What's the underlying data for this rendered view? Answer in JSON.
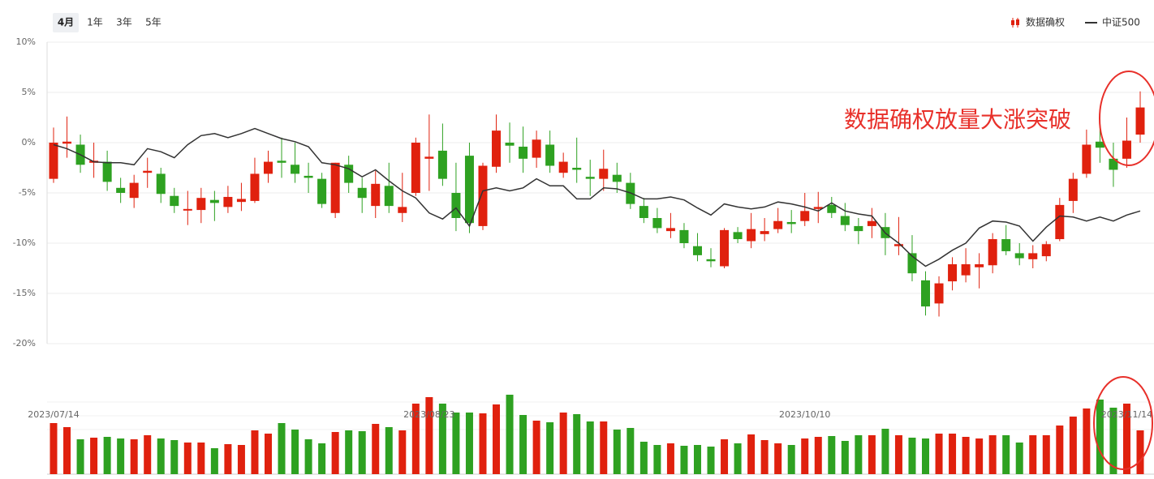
{
  "tabs": [
    "4月",
    "1年",
    "3年",
    "5年"
  ],
  "chart_data": {
    "type": "candlestick",
    "annotation": "数据确权放量大涨突破",
    "categories": [
      "2023/07/14",
      null,
      null,
      null,
      null,
      null,
      null,
      null,
      null,
      null,
      null,
      null,
      null,
      null,
      null,
      null,
      null,
      null,
      null,
      null,
      null,
      null,
      null,
      null,
      null,
      null,
      null,
      null,
      "2023/08/23",
      null,
      null,
      null,
      null,
      null,
      null,
      null,
      null,
      null,
      null,
      null,
      null,
      null,
      null,
      null,
      null,
      null,
      null,
      null,
      null,
      null,
      null,
      null,
      null,
      null,
      null,
      null,
      "2023/10/10",
      null,
      null,
      null,
      null,
      null,
      null,
      null,
      null,
      null,
      null,
      null,
      null,
      null,
      null,
      null,
      null,
      null,
      null,
      null,
      null,
      null,
      null,
      null,
      "2023/11/14",
      null
    ],
    "ylim": [
      -20,
      10
    ],
    "yticks": [
      {
        "value": 10,
        "label": "10%"
      },
      {
        "value": 5,
        "label": "5%"
      },
      {
        "value": 0,
        "label": "0%"
      },
      {
        "value": -5,
        "label": "-5%"
      },
      {
        "value": -10,
        "label": "-10%"
      },
      {
        "value": -15,
        "label": "-15%"
      },
      {
        "value": -20,
        "label": "-20%"
      }
    ],
    "volume_ylim": [
      0,
      100
    ],
    "grid": true,
    "series": [
      {
        "name": "数据确权",
        "type": "candlestick",
        "up_color": "#e0210e",
        "down_color": "#2ea121",
        "open": [
          -3.6,
          -0.1,
          -0.2,
          -2,
          -1.9,
          -4.5,
          -5.5,
          -3,
          -3.1,
          -5.3,
          -6.7,
          -6.7,
          -5.7,
          -6.4,
          -5.9,
          -5.8,
          -3.1,
          -1.8,
          -2.2,
          -3.3,
          -3.6,
          -7,
          -2.2,
          -4.5,
          -6.3,
          -4.3,
          -7,
          -5,
          -1.6,
          -0.8,
          -5,
          -1.3,
          -8.3,
          -2.4,
          0,
          -0.4,
          -1.5,
          -0.2,
          -3,
          -2.5,
          -3.4,
          -3.6,
          -3.2,
          -4,
          -6.3,
          -7.5,
          -8.8,
          -8.7,
          -10.3,
          -11.6,
          -12.3,
          -8.9,
          -9.8,
          -9.1,
          -8.6,
          -7.9,
          -7.8,
          -6.6,
          -6.2,
          -7.3,
          -8.3,
          -8.3,
          -8.4,
          -10.3,
          -11,
          -13.7,
          -16,
          -13.8,
          -13.2,
          -12.4,
          -12.2,
          -9.6,
          -11,
          -11.6,
          -11.3,
          -9.6,
          -5.8,
          -3.1,
          0.1,
          -1.6,
          -1.6,
          0.8
        ],
        "close": [
          0,
          0.1,
          -2.2,
          -1.8,
          -3.9,
          -5,
          -4,
          -2.8,
          -5.1,
          -6.3,
          -6.6,
          -5.5,
          -6,
          -5.4,
          -5.6,
          -3.1,
          -1.9,
          -2,
          -3.1,
          -3.5,
          -6.1,
          -2,
          -4,
          -5.5,
          -4.1,
          -6.3,
          -6.4,
          0,
          -1.4,
          -3.6,
          -7.5,
          -8,
          -2.3,
          1.2,
          -0.3,
          -1.6,
          0.3,
          -2.3,
          -1.9,
          -2.7,
          -3.6,
          -2.6,
          -3.9,
          -6.1,
          -7.5,
          -8.5,
          -8.5,
          -10,
          -11.2,
          -11.8,
          -8.7,
          -9.6,
          -8.6,
          -8.8,
          -7.8,
          -8.1,
          -6.8,
          -6.4,
          -7,
          -8.2,
          -8.8,
          -7.8,
          -9.5,
          -10.1,
          -13,
          -16.3,
          -14,
          -12.1,
          -12.1,
          -12.1,
          -9.6,
          -10.8,
          -11.5,
          -11,
          -10.1,
          -6.2,
          -3.6,
          -0.2,
          -0.5,
          -2.7,
          0.2,
          3.5
        ],
        "high": [
          1.5,
          2.6,
          0.8,
          0,
          -0.8,
          -3.5,
          -3.2,
          -1.5,
          -2.5,
          -4.5,
          -4.8,
          -4.5,
          -4.8,
          -4.3,
          -4,
          -1.5,
          -0.8,
          0.5,
          0,
          -2,
          -3,
          -2,
          -1.3,
          -3.5,
          -2.8,
          -2,
          -3,
          0.5,
          2.8,
          1.9,
          -2,
          0,
          -2,
          2.8,
          2,
          1.6,
          1.2,
          1.2,
          -1,
          0.5,
          -1.7,
          -0.7,
          -2,
          -3,
          -5.5,
          -6.5,
          -7,
          -8,
          -9,
          -10.5,
          -8.5,
          -8.4,
          -7,
          -7.5,
          -6.5,
          -6.7,
          -5,
          -4.9,
          -5.4,
          -6,
          -7.5,
          -6.5,
          -7,
          -7.4,
          -9.2,
          -12.8,
          -13.3,
          -11.4,
          -10.5,
          -11,
          -9,
          -8.2,
          -10,
          -10.2,
          -9.8,
          -5.5,
          -3,
          1.3,
          2,
          0,
          2.5,
          5.1
        ],
        "low": [
          -4,
          -1.5,
          -3,
          -3.5,
          -4.8,
          -6,
          -6.5,
          -4.5,
          -6,
          -7,
          -8.2,
          -8,
          -7.8,
          -7,
          -6.8,
          -6,
          -4,
          -3.5,
          -4,
          -5,
          -6.5,
          -7.5,
          -5,
          -7,
          -7.5,
          -7,
          -7.9,
          -5.3,
          -4.8,
          -4.3,
          -8.8,
          -9,
          -8.7,
          -3,
          -2,
          -3,
          -2.5,
          -3,
          -3.5,
          -4,
          -5.3,
          -4.8,
          -5,
          -6.6,
          -8,
          -9,
          -9.5,
          -10.5,
          -11.8,
          -12.4,
          -12.5,
          -10,
          -10.5,
          -9.8,
          -9,
          -9,
          -8.3,
          -8,
          -7.5,
          -8.8,
          -10.1,
          -9.5,
          -11.2,
          -11.2,
          -13.8,
          -17.2,
          -17.3,
          -14.7,
          -13.9,
          -14.5,
          -13,
          -11.2,
          -12.2,
          -12.5,
          -11.8,
          -9.8,
          -7,
          -3.5,
          -2,
          -4.4,
          -2.5,
          0
        ],
        "volume": [
          63,
          58,
          43,
          45,
          46,
          44,
          43,
          48,
          44,
          42,
          39,
          39,
          32,
          37,
          36,
          54,
          50,
          63,
          55,
          43,
          38,
          52,
          54,
          53,
          62,
          58,
          54,
          87,
          95,
          87,
          76,
          76,
          75,
          86,
          98,
          73,
          66,
          64,
          76,
          74,
          65,
          65,
          55,
          57,
          40,
          36,
          38,
          35,
          36,
          34,
          43,
          38,
          49,
          42,
          38,
          36,
          44,
          46,
          47,
          41,
          48,
          48,
          56,
          48,
          45,
          44,
          50,
          50,
          46,
          44,
          48,
          48,
          39,
          48,
          48,
          60,
          71,
          81,
          92,
          82,
          87,
          54
        ]
      },
      {
        "name": "中证500",
        "type": "line",
        "color": "#333333",
        "values": [
          -0.2,
          -0.6,
          -1.2,
          -1.9,
          -2,
          -2,
          -2.2,
          -0.6,
          -0.9,
          -1.5,
          -0.2,
          0.7,
          0.9,
          0.5,
          0.9,
          1.4,
          0.9,
          0.4,
          0.1,
          -0.4,
          -2,
          -2.2,
          -2.6,
          -3.4,
          -2.7,
          -3.8,
          -4.8,
          -5.5,
          -7,
          -7.6,
          -6.5,
          -8.3,
          -4.8,
          -4.5,
          -4.8,
          -4.5,
          -3.6,
          -4.3,
          -4.3,
          -5.6,
          -5.6,
          -4.5,
          -4.6,
          -5,
          -5.6,
          -5.6,
          -5.4,
          -5.7,
          -6.5,
          -7.2,
          -6.1,
          -6.4,
          -6.6,
          -6.4,
          -5.9,
          -6.1,
          -6.4,
          -6.8,
          -6,
          -6.8,
          -7.1,
          -7.3,
          -9,
          -10,
          -11.3,
          -12.3,
          -11.6,
          -10.7,
          -10,
          -8.5,
          -7.8,
          -7.9,
          -8.3,
          -9.8,
          -8.4,
          -7.3,
          -7.4,
          -7.8,
          -7.4,
          -7.8,
          -7.2,
          -6.8
        ]
      }
    ]
  }
}
